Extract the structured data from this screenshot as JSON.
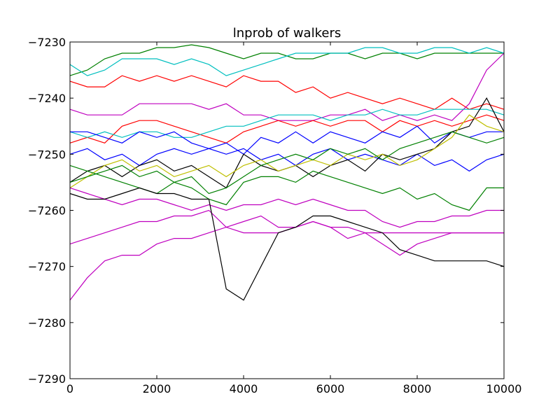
{
  "chart_data": {
    "type": "line",
    "title": "lnprob of walkers",
    "xlabel": "",
    "ylabel": "",
    "xlim": [
      0,
      10000
    ],
    "ylim": [
      -7290,
      -7230
    ],
    "xticks": [
      0,
      2000,
      4000,
      6000,
      8000,
      10000
    ],
    "yticks": [
      -7230,
      -7240,
      -7250,
      -7260,
      -7270,
      -7280,
      -7290
    ],
    "xtick_labels": [
      "0",
      "2000",
      "4000",
      "6000",
      "8000",
      "10000"
    ],
    "ytick_labels": [
      "−7230",
      "−7240",
      "−7250",
      "−7260",
      "−7270",
      "−7280",
      "−7290"
    ],
    "grid": false,
    "legend": "none",
    "x": [
      0,
      400,
      800,
      1200,
      1600,
      2000,
      2400,
      2800,
      3200,
      3600,
      4000,
      4400,
      4800,
      5200,
      5600,
      6000,
      6400,
      6800,
      7200,
      7600,
      8000,
      8400,
      8800,
      9200,
      9600,
      10000
    ],
    "series": [
      {
        "color": "#008000",
        "values": [
          -7236,
          -7235,
          -7233,
          -7232,
          -7232,
          -7231,
          -7231,
          -7230.5,
          -7231,
          -7232,
          -7233,
          -7232,
          -7232,
          -7233,
          -7233,
          -7232,
          -7232,
          -7233,
          -7232,
          -7232,
          -7233,
          -7232,
          -7232,
          -7232,
          -7232,
          -7232
        ]
      },
      {
        "color": "#00bfbf",
        "values": [
          -7234,
          -7236,
          -7235,
          -7233,
          -7233,
          -7233,
          -7234,
          -7233,
          -7234,
          -7236,
          -7235,
          -7234,
          -7233,
          -7232,
          -7232,
          -7232,
          -7232,
          -7231,
          -7231,
          -7232,
          -7232,
          -7231,
          -7231,
          -7232,
          -7231,
          -7232
        ]
      },
      {
        "color": "#ff0000",
        "values": [
          -7237,
          -7238,
          -7238,
          -7236,
          -7237,
          -7236,
          -7237,
          -7236,
          -7237,
          -7238,
          -7236,
          -7237,
          -7237,
          -7239,
          -7238,
          -7240,
          -7239,
          -7240,
          -7241,
          -7240,
          -7241,
          -7242,
          -7240,
          -7242,
          -7241,
          -7242
        ]
      },
      {
        "color": "#bf00bf",
        "values": [
          -7242,
          -7243,
          -7243,
          -7243,
          -7241,
          -7241,
          -7241,
          -7241,
          -7242,
          -7241,
          -7243,
          -7243,
          -7244,
          -7244,
          -7244,
          -7243,
          -7243,
          -7242,
          -7244,
          -7243,
          -7244,
          -7243,
          -7244,
          -7241,
          -7235,
          -7232
        ]
      },
      {
        "color": "#ff0000",
        "values": [
          -7248,
          -7247,
          -7248,
          -7245,
          -7244,
          -7244,
          -7245,
          -7246,
          -7247,
          -7248,
          -7246,
          -7245,
          -7244,
          -7245,
          -7244,
          -7245,
          -7244,
          -7244,
          -7246,
          -7244,
          -7245,
          -7244,
          -7245,
          -7244,
          -7243,
          -7244
        ]
      },
      {
        "color": "#00bfbf",
        "values": [
          -7246,
          -7247,
          -7246,
          -7247,
          -7246,
          -7246,
          -7247,
          -7247,
          -7246,
          -7245,
          -7245,
          -7244,
          -7243,
          -7243,
          -7243,
          -7244,
          -7243,
          -7243,
          -7242,
          -7243,
          -7243,
          -7242,
          -7242,
          -7242,
          -7242,
          -7243
        ]
      },
      {
        "color": "#0000ff",
        "values": [
          -7246,
          -7246,
          -7247,
          -7248,
          -7246,
          -7247,
          -7246,
          -7248,
          -7249,
          -7248,
          -7250,
          -7247,
          -7248,
          -7246,
          -7248,
          -7246,
          -7247,
          -7248,
          -7246,
          -7247,
          -7245,
          -7248,
          -7246,
          -7247,
          -7246,
          -7246
        ]
      },
      {
        "color": "#0000ff",
        "values": [
          -7250,
          -7249,
          -7251,
          -7250,
          -7252,
          -7250,
          -7249,
          -7250,
          -7249,
          -7250,
          -7249,
          -7251,
          -7250,
          -7252,
          -7250,
          -7249,
          -7251,
          -7250,
          -7251,
          -7252,
          -7250,
          -7252,
          -7251,
          -7253,
          -7251,
          -7250
        ]
      },
      {
        "color": "#000000",
        "values": [
          -7255,
          -7253,
          -7252,
          -7254,
          -7252,
          -7251,
          -7253,
          -7252,
          -7254,
          -7256,
          -7250,
          -7252,
          -7253,
          -7252,
          -7254,
          -7252,
          -7251,
          -7253,
          -7250,
          -7251,
          -7250,
          -7249,
          -7246,
          -7245,
          -7240,
          -7246
        ]
      },
      {
        "color": "#bfbf00",
        "values": [
          -7256,
          -7254,
          -7252,
          -7251,
          -7253,
          -7252,
          -7254,
          -7253,
          -7252,
          -7254,
          -7252,
          -7251,
          -7253,
          -7252,
          -7251,
          -7252,
          -7250,
          -7251,
          -7250,
          -7252,
          -7251,
          -7249,
          -7247,
          -7243,
          -7245,
          -7246
        ]
      },
      {
        "color": "#008000",
        "values": [
          -7255,
          -7254,
          -7253,
          -7252,
          -7254,
          -7253,
          -7255,
          -7254,
          -7257,
          -7256,
          -7254,
          -7252,
          -7251,
          -7250,
          -7251,
          -7249,
          -7250,
          -7249,
          -7251,
          -7249,
          -7248,
          -7247,
          -7246,
          -7247,
          -7248,
          -7247
        ]
      },
      {
        "color": "#008000",
        "values": [
          -7252,
          -7253,
          -7254,
          -7255,
          -7256,
          -7257,
          -7255,
          -7256,
          -7258,
          -7259,
          -7255,
          -7254,
          -7254,
          -7255,
          -7253,
          -7254,
          -7255,
          -7256,
          -7257,
          -7256,
          -7258,
          -7257,
          -7259,
          -7260,
          -7256,
          -7256
        ]
      },
      {
        "color": "#bf00bf",
        "values": [
          -7256,
          -7257,
          -7258,
          -7259,
          -7258,
          -7258,
          -7259,
          -7260,
          -7259,
          -7260,
          -7259,
          -7259,
          -7258,
          -7259,
          -7258,
          -7259,
          -7260,
          -7260,
          -7262,
          -7263,
          -7262,
          -7262,
          -7261,
          -7261,
          -7260,
          -7260
        ]
      },
      {
        "color": "#bf00bf",
        "values": [
          -7266,
          -7265,
          -7264,
          -7263,
          -7262,
          -7262,
          -7261,
          -7261,
          -7260,
          -7263,
          -7262,
          -7261,
          -7263,
          -7263,
          -7262,
          -7263,
          -7265,
          -7264,
          -7266,
          -7268,
          -7266,
          -7265,
          -7264,
          -7264,
          -7264,
          -7264
        ]
      },
      {
        "color": "#bf00bf",
        "values": [
          -7276,
          -7272,
          -7269,
          -7268,
          -7268,
          -7266,
          -7265,
          -7265,
          -7264,
          -7263,
          -7264,
          -7264,
          -7264,
          -7263,
          -7262,
          -7263,
          -7263,
          -7264,
          -7264,
          -7264,
          -7264,
          -7264,
          -7264,
          -7264,
          -7264,
          -7264
        ]
      },
      {
        "color": "#000000",
        "values": [
          -7257,
          -7258,
          -7258,
          -7257,
          -7256,
          -7257,
          -7257,
          -7258,
          -7258,
          -7274,
          -7276,
          -7270,
          -7264,
          -7263,
          -7261,
          -7261,
          -7262,
          -7263,
          -7264,
          -7267,
          -7268,
          -7269,
          -7269,
          -7269,
          -7269,
          -7270
        ]
      }
    ]
  }
}
